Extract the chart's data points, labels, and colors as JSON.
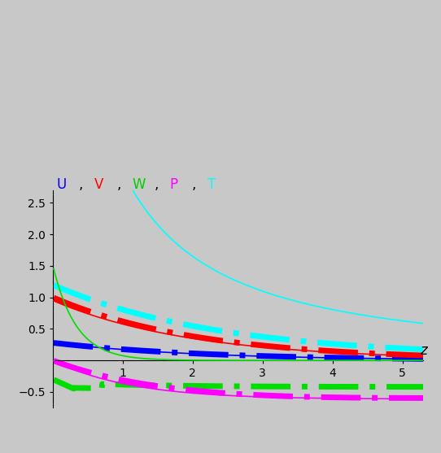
{
  "background_color": "#c8c8c8",
  "xlim": [
    0,
    5.3
  ],
  "ylim": [
    -0.75,
    2.7
  ],
  "xticks": [
    1,
    2,
    3,
    4,
    5
  ],
  "yticks": [
    -0.5,
    0.5,
    1.0,
    1.5,
    2.0,
    2.5
  ],
  "figsize": [
    5.42,
    5.57
  ],
  "dpi": 100,
  "label_parts": [
    [
      "U",
      "blue"
    ],
    [
      ",",
      "black"
    ],
    [
      "V",
      "red"
    ],
    [
      ",",
      "black"
    ],
    [
      "W",
      "#00cc00"
    ],
    [
      ",",
      "black"
    ],
    [
      "P",
      "magenta"
    ],
    [
      ",",
      "black"
    ],
    [
      "T",
      "cyan"
    ]
  ],
  "lw_solid": 1.2,
  "lw_dash": 5.0,
  "colors": {
    "U": "blue",
    "V": "red",
    "W": "#00dd00",
    "P": "magenta",
    "T": "cyan"
  }
}
